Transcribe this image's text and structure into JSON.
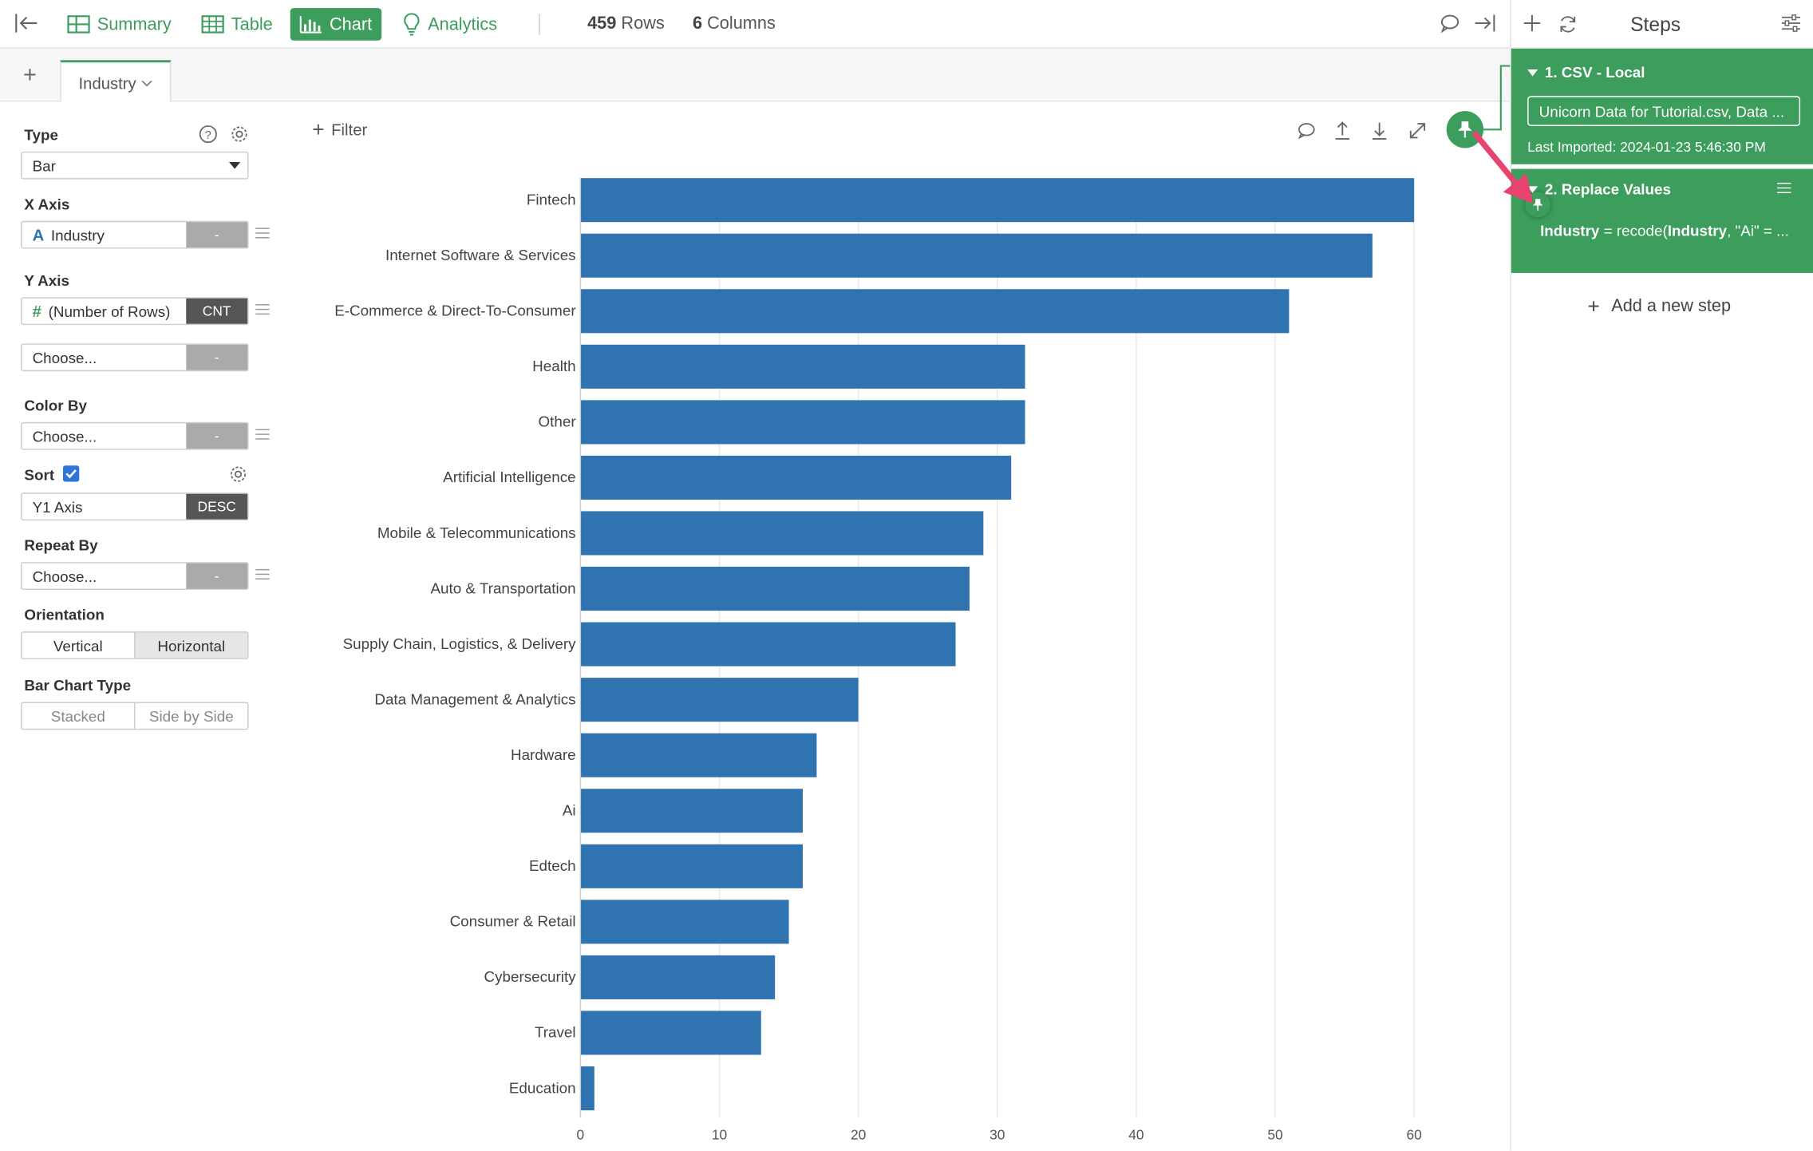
{
  "toolbar": {
    "tabs": [
      {
        "label": "Summary",
        "icon": "summary-icon",
        "active": false
      },
      {
        "label": "Table",
        "icon": "table-icon",
        "active": false
      },
      {
        "label": "Chart",
        "icon": "chart-icon",
        "active": true
      },
      {
        "label": "Analytics",
        "icon": "lightbulb-icon",
        "active": false
      }
    ],
    "rows_count": "459",
    "rows_label": "Rows",
    "cols_count": "6",
    "cols_label": "Columns"
  },
  "chart_tabs": {
    "add_label": "+",
    "tabs": [
      {
        "label": "Industry"
      }
    ]
  },
  "config": {
    "type_label": "Type",
    "type_value": "Bar",
    "x_axis_label": "X Axis",
    "x_axis_value": "Industry",
    "x_axis_type_icon": "A",
    "x_axis_agg": "-",
    "y_axis_label": "Y Axis",
    "y_axis_value": "(Number of Rows)",
    "y_axis_type_icon": "#",
    "y_axis_agg": "CNT",
    "y2_value": "Choose...",
    "y2_agg": "-",
    "color_by_label": "Color By",
    "color_by_value": "Choose...",
    "color_by_agg": "-",
    "sort_label": "Sort",
    "sort_checked": true,
    "sort_value": "Y1 Axis",
    "sort_order": "DESC",
    "repeat_by_label": "Repeat By",
    "repeat_by_value": "Choose...",
    "repeat_by_agg": "-",
    "orientation_label": "Orientation",
    "orientation_options": [
      "Vertical",
      "Horizontal"
    ],
    "orientation_selected": "Horizontal",
    "bar_type_label": "Bar Chart Type",
    "bar_type_options": [
      "Stacked",
      "Side by Side"
    ]
  },
  "filter_label": "Filter",
  "chart_data": {
    "type": "bar",
    "orientation": "horizontal",
    "categories": [
      "Fintech",
      "Internet Software & Services",
      "E-Commerce & Direct-To-Consumer",
      "Health",
      "Other",
      "Artificial Intelligence",
      "Mobile & Telecommunications",
      "Auto & Transportation",
      "Supply Chain, Logistics, & Delivery",
      "Data Management & Analytics",
      "Hardware",
      "Ai",
      "Edtech",
      "Consumer & Retail",
      "Cybersecurity",
      "Travel",
      "Education"
    ],
    "values": [
      60,
      57,
      51,
      32,
      32,
      31,
      29,
      28,
      27,
      20,
      17,
      16,
      16,
      15,
      14,
      13,
      1
    ],
    "xlim": [
      0,
      60
    ],
    "ticks": [
      0,
      10,
      20,
      30,
      40,
      50,
      60
    ],
    "color": "#2f74b1",
    "grid": true
  },
  "steps": {
    "title": "Steps",
    "items": [
      {
        "head": "1. CSV - Local",
        "source": "Unicorn Data for Tutorial.csv, Data ...",
        "note": "Last Imported: 2024-01-23 5:46:30 PM"
      },
      {
        "head": "2. Replace Values",
        "expr_col": "Industry",
        "expr_rest": " = recode(",
        "expr_col2": "Industry",
        "expr_tail": ", \"Ai\" = ..."
      }
    ],
    "add_label": "Add a new step"
  },
  "colors": {
    "accent": "#3c9d5c",
    "bar": "#2f74b1",
    "arrow": "#e8436e"
  }
}
